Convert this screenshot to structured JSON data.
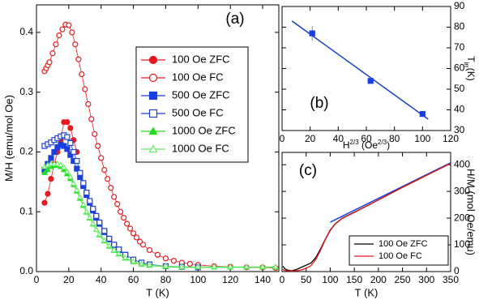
{
  "chart_data": [
    {
      "type": "scatter",
      "annotation": "(a)",
      "xlabel": "T (K)",
      "ylabel": "M/H (emu/mol Oe)",
      "xlim": [
        0,
        150
      ],
      "xticks": [
        0,
        20,
        40,
        60,
        80,
        100,
        120,
        140
      ],
      "ylim": [
        0,
        0.446
      ],
      "yticks": [
        {
          "value": 0,
          "label": "0.0"
        },
        0.1,
        0.2,
        0.3,
        0.4
      ],
      "yaxis_side": "left",
      "legend": "upper center",
      "series": [
        {
          "name": "100 Oe ZFC",
          "color": "#e8191f",
          "marker": "circle",
          "filled": true,
          "x": [
            5,
            7,
            9,
            11,
            13,
            15,
            17,
            19,
            21,
            23,
            25
          ],
          "values": [
            0.115,
            0.13,
            0.155,
            0.18,
            0.2,
            0.22,
            0.25,
            0.25,
            0.24,
            0.22,
            0.2
          ]
        },
        {
          "name": "100 Oe FC",
          "color": "#e8191f",
          "marker": "circle",
          "filled": false,
          "x": [
            5,
            6,
            7,
            8,
            10,
            12,
            14,
            16,
            18,
            20,
            22,
            24,
            26,
            28,
            30,
            32,
            34,
            36,
            38,
            40,
            42,
            44,
            46,
            48,
            50,
            52,
            54,
            56,
            58,
            60,
            62,
            64,
            66,
            70,
            75,
            80,
            85,
            90,
            95,
            100,
            110,
            120,
            130,
            140,
            148
          ],
          "values": [
            0.335,
            0.34,
            0.345,
            0.35,
            0.365,
            0.38,
            0.395,
            0.405,
            0.413,
            0.412,
            0.4,
            0.38,
            0.355,
            0.33,
            0.305,
            0.28,
            0.255,
            0.23,
            0.21,
            0.19,
            0.17,
            0.155,
            0.14,
            0.125,
            0.113,
            0.1,
            0.09,
            0.08,
            0.072,
            0.064,
            0.057,
            0.05,
            0.045,
            0.036,
            0.028,
            0.022,
            0.018,
            0.015,
            0.013,
            0.011,
            0.009,
            0.008,
            0.007,
            0.007,
            0.006
          ]
        },
        {
          "name": "500 Oe ZFC",
          "color": "#1a3fe0",
          "marker": "square",
          "filled": true,
          "x": [
            5,
            7,
            9,
            11,
            13,
            15,
            17,
            19,
            21,
            23,
            25,
            27,
            29,
            31,
            33,
            35,
            37,
            39,
            42,
            45,
            48,
            51,
            55
          ],
          "values": [
            0.17,
            0.18,
            0.19,
            0.2,
            0.208,
            0.212,
            0.21,
            0.205,
            0.195,
            0.185,
            0.172,
            0.158,
            0.143,
            0.128,
            0.115,
            0.102,
            0.09,
            0.08,
            0.066,
            0.054,
            0.044,
            0.036,
            0.028
          ]
        },
        {
          "name": "500 Oe FC",
          "color": "#1a3fe0",
          "marker": "square",
          "filled": false,
          "x": [
            5,
            7,
            9,
            11,
            13,
            15,
            17,
            19,
            21,
            23,
            25,
            27,
            29,
            31,
            33,
            35,
            37,
            39,
            42,
            45,
            48,
            51,
            55,
            60,
            65,
            70,
            80,
            90,
            100
          ],
          "values": [
            0.21,
            0.213,
            0.216,
            0.22,
            0.223,
            0.226,
            0.228,
            0.225,
            0.215,
            0.2,
            0.185,
            0.165,
            0.148,
            0.132,
            0.118,
            0.105,
            0.093,
            0.082,
            0.068,
            0.055,
            0.045,
            0.037,
            0.028,
            0.02,
            0.015,
            0.012,
            0.009,
            0.008,
            0.007
          ]
        },
        {
          "name": "1000 Oe ZFC",
          "color": "#22dd22",
          "marker": "triangle",
          "filled": true,
          "x": [
            5,
            7,
            9,
            11,
            13,
            15,
            17,
            19,
            21,
            23,
            25,
            27,
            29,
            31,
            33,
            35,
            37,
            39,
            42,
            45,
            48,
            51,
            55,
            60,
            65,
            70,
            80,
            90,
            100,
            110,
            120,
            130,
            140,
            148
          ],
          "values": [
            0.165,
            0.17,
            0.175,
            0.177,
            0.177,
            0.175,
            0.17,
            0.163,
            0.155,
            0.145,
            0.134,
            0.122,
            0.11,
            0.099,
            0.089,
            0.079,
            0.07,
            0.061,
            0.051,
            0.042,
            0.035,
            0.029,
            0.022,
            0.016,
            0.012,
            0.01,
            0.008,
            0.007,
            0.007,
            0.007,
            0.007,
            0.007,
            0.007,
            0.007
          ]
        },
        {
          "name": "1000 Oe FC",
          "color": "#66ee66",
          "marker": "triangle",
          "filled": false,
          "x": [
            5,
            7,
            9,
            11,
            13,
            15,
            17,
            19,
            21,
            23,
            25,
            27,
            29,
            31,
            33,
            35,
            37,
            39,
            42,
            45,
            48,
            51,
            55,
            60,
            65,
            70,
            80,
            90,
            100,
            110,
            120,
            130,
            140,
            148
          ],
          "values": [
            0.175,
            0.178,
            0.18,
            0.18,
            0.18,
            0.178,
            0.174,
            0.167,
            0.158,
            0.147,
            0.136,
            0.124,
            0.112,
            0.1,
            0.09,
            0.08,
            0.07,
            0.062,
            0.052,
            0.043,
            0.036,
            0.03,
            0.023,
            0.017,
            0.013,
            0.011,
            0.009,
            0.008,
            0.008,
            0.008,
            0.008,
            0.008,
            0.008,
            0.008
          ]
        }
      ]
    },
    {
      "type": "scatter",
      "annotation": "(b)",
      "xlabel_parts": [
        "H",
        "2/3",
        " (Oe",
        "2/3",
        ")"
      ],
      "ylabel_parts": [
        "T",
        "irr",
        "(K)"
      ],
      "xlim": [
        0,
        120
      ],
      "xticks": [
        0,
        20,
        40,
        60,
        80,
        100,
        120
      ],
      "ylim": [
        30,
        90
      ],
      "yticks": [
        30,
        40,
        50,
        60,
        70,
        80,
        90
      ],
      "yaxis_side": "right",
      "series": [
        {
          "color": "#1a3fe0",
          "marker": "square",
          "filled": true,
          "x": [
            21.5,
            63,
            100
          ],
          "values": [
            77,
            54,
            38
          ],
          "errors": [
            3.5,
            1.5,
            1.5
          ]
        }
      ],
      "fit": {
        "color": "#1040c0",
        "x": [
          7,
          104
        ],
        "values": [
          83,
          35.5
        ]
      }
    },
    {
      "type": "line",
      "annotation": "(c)",
      "xlabel": "T (K)",
      "ylabel": "H/M (mol Oe/emu)",
      "xlim": [
        0,
        350
      ],
      "xticks": [
        0,
        50,
        100,
        150,
        200,
        250,
        300,
        350
      ],
      "ylim": [
        0,
        446
      ],
      "yticks": [
        0,
        100,
        200,
        300,
        400
      ],
      "yaxis_side": "right",
      "legend": "lower right",
      "series": [
        {
          "name": "100 Oe ZFC",
          "color": "#000000",
          "x": [
            2,
            5,
            10,
            20,
            30,
            40,
            50,
            60,
            70,
            80,
            90,
            100,
            110,
            125,
            150,
            200,
            250,
            300,
            350
          ],
          "values": [
            20,
            12,
            6,
            3,
            8,
            16,
            24,
            32,
            52,
            85,
            122,
            155,
            178,
            200,
            222,
            268,
            315,
            360,
            405
          ]
        },
        {
          "name": "100 Oe  FC",
          "color": "#e8191f",
          "x": [
            2,
            5,
            10,
            20,
            30,
            40,
            50,
            60,
            70,
            80,
            90,
            100,
            110,
            125,
            150,
            200,
            250,
            300,
            350
          ],
          "values": [
            8,
            5,
            3,
            2,
            3,
            6,
            12,
            22,
            45,
            80,
            120,
            153,
            177,
            199,
            221,
            268,
            315,
            360,
            405
          ]
        }
      ],
      "fit": {
        "color": "#1a3fe0",
        "x": [
          100,
          350
        ],
        "values": [
          185,
          407
        ]
      }
    }
  ]
}
